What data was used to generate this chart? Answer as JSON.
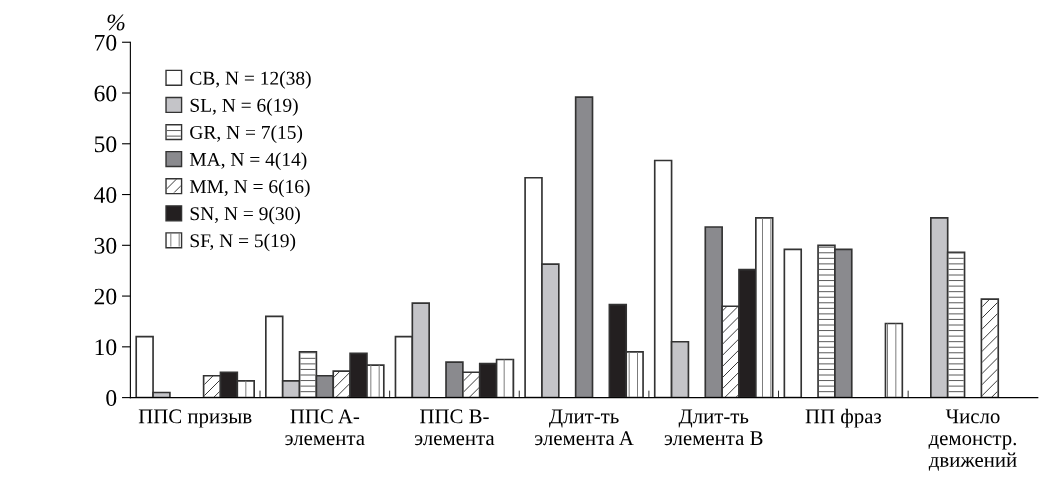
{
  "chart_data": {
    "type": "bar",
    "ylabel": "%",
    "categories": [
      "ППС призыв",
      "ППС A-\nэлемента",
      "ППС B-\nэлемента",
      "Длит-ть\nэлемента A",
      "Длит-ть\nэлемента B",
      "ПП фраз",
      "Число\nдемонстр.\nдвижений"
    ],
    "series": [
      {
        "name": "CB, N = 12(38)",
        "color": "#ffffff",
        "values": [
          12,
          16,
          12,
          43.3,
          46.7,
          29.2,
          null
        ]
      },
      {
        "name": "SL, N = 6(19)",
        "color": "#c4c4c8",
        "values": [
          1,
          3.3,
          18.6,
          26.3,
          11,
          null,
          35.4
        ]
      },
      {
        "name": "GR, N = 7(15)",
        "color": "#ffffff",
        "values": [
          null,
          9,
          null,
          null,
          null,
          30,
          28.6
        ]
      },
      {
        "name": "MA, N = 4(14)",
        "color": "#8a8a8e",
        "values": [
          null,
          4.3,
          7,
          59.2,
          33.6,
          29.2,
          null
        ]
      },
      {
        "name": "MM, N = 6(16)",
        "color": "#ffffff",
        "values": [
          4.3,
          5.2,
          5,
          null,
          18,
          null,
          19.4
        ]
      },
      {
        "name": "SN, N = 9(30)",
        "color": "#231f20",
        "values": [
          5,
          8.7,
          6.7,
          18.3,
          25.2,
          null,
          null
        ]
      },
      {
        "name": "SF, N = 5(19)",
        "color": "#ffffff",
        "values": [
          3.3,
          6.4,
          7.5,
          9,
          35.4,
          14.6,
          null
        ]
      }
    ],
    "ylim": [
      0,
      70
    ],
    "yticks": [
      0,
      10,
      20,
      30,
      40,
      50,
      60,
      70
    ],
    "grid": false,
    "legend": "top left"
  }
}
